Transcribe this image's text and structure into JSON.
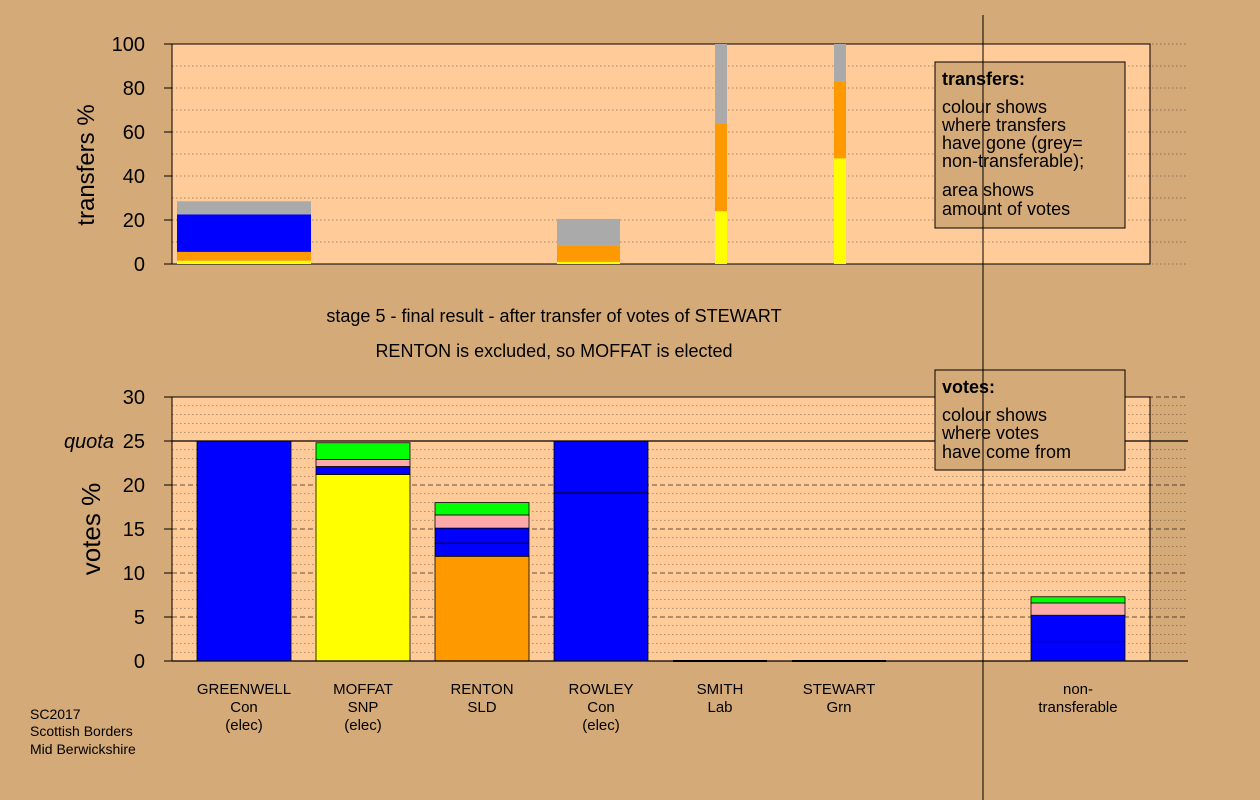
{
  "colors": {
    "background": "#d4aa78",
    "panel": "#ffcc99",
    "con": "#0000ff",
    "snp": "#ffff00",
    "sld": "#ff9900",
    "lab": "#ffaaaa",
    "grn": "#00ff00",
    "nontransferable": "#aaaaaa",
    "con_dark": "#000099"
  },
  "chart_data": [
    {
      "type": "bar",
      "name": "transfers",
      "ylabel": "transfers %",
      "ylim": [
        0,
        100
      ],
      "yticks": [
        "0",
        "20",
        "40",
        "60",
        "80",
        "100"
      ],
      "grid": true,
      "legend_title": "transfers:",
      "legend_lines_1": [
        "colour shows",
        "where transfers",
        "have gone (grey=",
        "non-transferable);"
      ],
      "legend_lines_2": [
        "area shows",
        "amount of votes"
      ],
      "bars": [
        {
          "category": "GREENWELL",
          "segments": [
            {
              "party": "snp",
              "value": 1.5
            },
            {
              "party": "sld",
              "value": 4
            },
            {
              "party": "con",
              "value": 17
            },
            {
              "party": "nontransferable",
              "value": 6
            }
          ]
        },
        {
          "category": "RENTON",
          "segments": [
            {
              "party": "snp",
              "value": 1
            },
            {
              "party": "sld",
              "value": 7.5
            },
            {
              "party": "nontransferable",
              "value": 12
            }
          ]
        },
        {
          "category": "SMITH",
          "segments": [
            {
              "party": "snp",
              "value": 24
            },
            {
              "party": "sld",
              "value": 40
            },
            {
              "party": "nontransferable",
              "value": 36
            }
          ]
        },
        {
          "category": "STEWART",
          "segments": [
            {
              "party": "snp",
              "value": 48
            },
            {
              "party": "sld",
              "value": 35
            },
            {
              "party": "nontransferable",
              "value": 17
            }
          ]
        }
      ]
    },
    {
      "type": "bar",
      "name": "votes",
      "ylabel": "votes %",
      "ylim": [
        0,
        30
      ],
      "yticks": [
        "0",
        "5",
        "10",
        "15",
        "20",
        "25",
        "30"
      ],
      "quota": 25,
      "quota_label": "quota",
      "grid": true,
      "legend_title": "votes:",
      "legend_lines": [
        "colour shows",
        "where votes",
        "have come from"
      ],
      "candidates": [
        {
          "name": "GREENWELL",
          "party": "Con",
          "status": "(elec)",
          "segments": [
            {
              "party": "con",
              "value": 25
            }
          ]
        },
        {
          "name": "MOFFAT",
          "party": "SNP",
          "status": "(elec)",
          "segments": [
            {
              "party": "snp",
              "value": 21.2
            },
            {
              "party": "con",
              "value": 0.9
            },
            {
              "party": "lab",
              "value": 0.8
            },
            {
              "party": "grn",
              "value": 1.9
            }
          ]
        },
        {
          "name": "RENTON",
          "party": "SLD",
          "status": "",
          "segments": [
            {
              "party": "sld",
              "value": 11.9
            },
            {
              "party": "con",
              "value": 1.5
            },
            {
              "party": "con",
              "value": 1.7
            },
            {
              "party": "lab",
              "value": 1.5
            },
            {
              "party": "grn",
              "value": 1.4
            }
          ]
        },
        {
          "name": "ROWLEY",
          "party": "Con",
          "status": "(elec)",
          "segments": [
            {
              "party": "con",
              "value": 19.1
            },
            {
              "party": "con",
              "value": 5.9
            }
          ]
        },
        {
          "name": "SMITH",
          "party": "Lab",
          "status": "",
          "segments": []
        },
        {
          "name": "STEWART",
          "party": "Grn",
          "status": "",
          "segments": []
        },
        {
          "name": "non-",
          "party": "transferable",
          "status": "",
          "segments": [
            {
              "party": "con",
              "value": 2.2
            },
            {
              "party": "con",
              "value": 3.0
            },
            {
              "party": "lab",
              "value": 1.4
            },
            {
              "party": "grn",
              "value": 0.7
            }
          ]
        }
      ]
    }
  ],
  "stage_title": "stage 5 - final result - after transfer of votes of STEWART",
  "stage_subtitle": "RENTON is excluded, so MOFFAT is elected",
  "footer": [
    "SC2017",
    "Scottish Borders",
    "Mid Berwickshire"
  ]
}
